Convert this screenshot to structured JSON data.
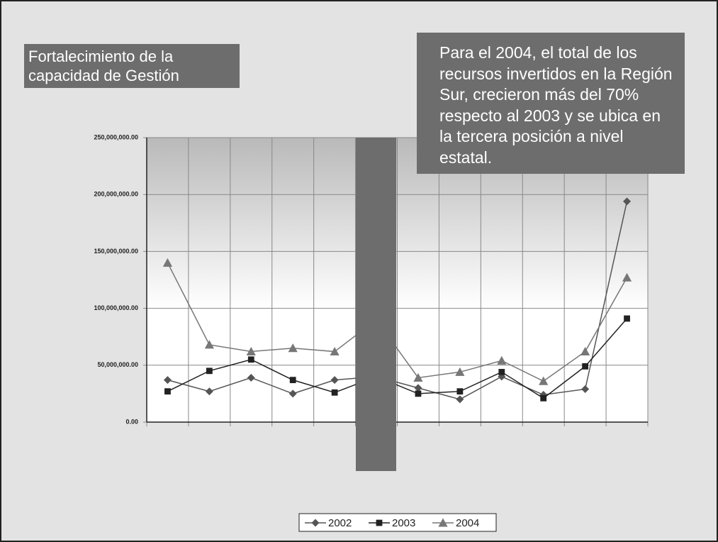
{
  "chart_data": {
    "type": "line",
    "title": "Fortalecimiento de la capacidad de Gestión",
    "annotation": "Para el 2004, el total de los recursos invertidos en la Región Sur, crecieron más del 70% respecto al 2003 y se ubica en la tercera posición a nivel estatal.",
    "categories": [
      null,
      null,
      null,
      null,
      null,
      null,
      null,
      null,
      null,
      null,
      null,
      null
    ],
    "series": [
      {
        "name": "2002",
        "color": "#555555",
        "marker": "diamond",
        "values": [
          37000000,
          27000000,
          39000000,
          25000000,
          37000000,
          40000000,
          30000000,
          20000000,
          40000000,
          24000000,
          29000000,
          194000000
        ]
      },
      {
        "name": "2003",
        "color": "#222222",
        "marker": "square",
        "values": [
          27000000,
          45000000,
          55000000,
          37000000,
          26000000,
          40000000,
          25000000,
          27000000,
          44000000,
          21000000,
          49000000,
          91000000
        ]
      },
      {
        "name": "2004",
        "color": "#777777",
        "marker": "triangle",
        "values": [
          140000000,
          68000000,
          62000000,
          65000000,
          62000000,
          90000000,
          39000000,
          44000000,
          54000000,
          36000000,
          62000000,
          127000000
        ]
      }
    ],
    "ylim": [
      0,
      250000000
    ],
    "yticks": [
      {
        "value": 0,
        "label": "0.00"
      },
      {
        "value": 50000000,
        "label": "50,000,000.00"
      },
      {
        "value": 100000000,
        "label": "100,000,000.00"
      },
      {
        "value": 150000000,
        "label": "150,000,000.00"
      },
      {
        "value": 200000000,
        "label": "200,000,000.00"
      },
      {
        "value": 250000000,
        "label": "250,000,000.00"
      }
    ],
    "grid": true,
    "legend": "bottom"
  }
}
